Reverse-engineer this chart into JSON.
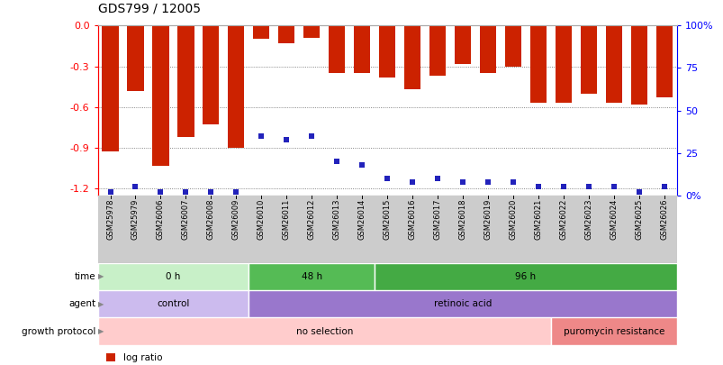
{
  "title": "GDS799 / 12005",
  "samples": [
    "GSM25978",
    "GSM25979",
    "GSM26006",
    "GSM26007",
    "GSM26008",
    "GSM26009",
    "GSM26010",
    "GSM26011",
    "GSM26012",
    "GSM26013",
    "GSM26014",
    "GSM26015",
    "GSM26016",
    "GSM26017",
    "GSM26018",
    "GSM26019",
    "GSM26020",
    "GSM26021",
    "GSM26022",
    "GSM26023",
    "GSM26024",
    "GSM26025",
    "GSM26026"
  ],
  "log_ratio": [
    -0.93,
    -0.48,
    -1.03,
    -0.82,
    -0.73,
    -0.9,
    -0.1,
    -0.13,
    -0.09,
    -0.35,
    -0.35,
    -0.38,
    -0.47,
    -0.37,
    -0.28,
    -0.35,
    -0.3,
    -0.57,
    -0.57,
    -0.5,
    -0.57,
    -0.58,
    -0.53
  ],
  "percentile": [
    2,
    5,
    2,
    2,
    2,
    2,
    35,
    33,
    35,
    20,
    18,
    10,
    8,
    10,
    8,
    8,
    8,
    5,
    5,
    5,
    5,
    2,
    5
  ],
  "time_groups": [
    {
      "label": "0 h",
      "start": 0,
      "end": 6,
      "color": "#c8f0c8"
    },
    {
      "label": "48 h",
      "start": 6,
      "end": 11,
      "color": "#55bb55"
    },
    {
      "label": "96 h",
      "start": 11,
      "end": 23,
      "color": "#44aa44"
    }
  ],
  "agent_groups": [
    {
      "label": "control",
      "start": 0,
      "end": 6,
      "color": "#ccbbee"
    },
    {
      "label": "retinoic acid",
      "start": 6,
      "end": 23,
      "color": "#9977cc"
    }
  ],
  "growth_groups": [
    {
      "label": "no selection",
      "start": 0,
      "end": 18,
      "color": "#ffcccc"
    },
    {
      "label": "puromycin resistance",
      "start": 18,
      "end": 23,
      "color": "#ee8888"
    }
  ],
  "bar_color": "#cc2200",
  "dot_color": "#2222bb",
  "ylim": [
    -1.25,
    0.0
  ],
  "y2_ticks": [
    0,
    25,
    50,
    75,
    100
  ],
  "y2_labels": [
    "0%",
    "25",
    "50",
    "75",
    "100%"
  ],
  "yticks": [
    0.0,
    -0.3,
    -0.6,
    -0.9,
    -1.2
  ],
  "bg_color": "#ffffff",
  "plot_bg": "#ffffff",
  "grid_color": "#666666",
  "xlabelbg": "#cccccc"
}
